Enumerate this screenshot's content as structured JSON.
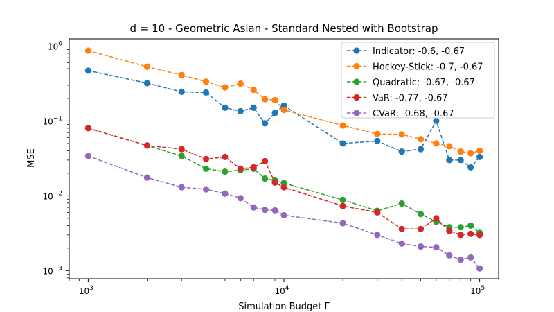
{
  "chart_data": {
    "type": "line",
    "title": "d = 10 - Geometric Asian - Standard Nested with Bootstrap",
    "xlabel": "Simulation Budget Γ",
    "ylabel": "MSE",
    "xscale": "log",
    "yscale": "log",
    "xlim": [
      800,
      125000
    ],
    "ylim": [
      0.00078,
      1.25
    ],
    "x_ticks": [
      {
        "value": 1000,
        "base": "10",
        "exp": "3"
      },
      {
        "value": 10000,
        "base": "10",
        "exp": "4"
      },
      {
        "value": 100000,
        "base": "10",
        "exp": "5"
      }
    ],
    "y_ticks": [
      {
        "value": 0.001,
        "base": "10",
        "exp": "−3"
      },
      {
        "value": 0.01,
        "base": "10",
        "exp": "−2"
      },
      {
        "value": 0.1,
        "base": "10",
        "exp": "−1"
      },
      {
        "value": 1,
        "base": "10",
        "exp": "0"
      }
    ],
    "legend_position": "top-right",
    "grid": false,
    "x": [
      1000,
      2000,
      3000,
      4000,
      5000,
      6000,
      7000,
      8000,
      9000,
      10000,
      20000,
      30000,
      40000,
      50000,
      60000,
      70000,
      80000,
      90000,
      100000
    ],
    "series": [
      {
        "name": "Indicator: -0.6, -0.67",
        "color": "#1f77b4",
        "values": [
          0.47,
          0.32,
          0.245,
          0.24,
          0.15,
          0.135,
          0.15,
          0.093,
          0.128,
          0.16,
          0.05,
          0.054,
          0.039,
          0.042,
          0.1,
          0.03,
          0.03,
          0.024,
          0.033
        ]
      },
      {
        "name": "Hockey-Stick: -0.7, -0.67",
        "color": "#ff7f0e",
        "values": [
          0.87,
          0.53,
          0.41,
          0.335,
          0.28,
          0.315,
          0.26,
          0.195,
          0.19,
          0.14,
          0.087,
          0.067,
          0.066,
          0.057,
          0.05,
          0.046,
          0.039,
          0.037,
          0.04
        ]
      },
      {
        "name": "Quadratic: -0.67, -0.67",
        "color": "#2ca02c",
        "values": [
          0.08,
          0.047,
          0.034,
          0.023,
          0.021,
          0.022,
          0.023,
          0.017,
          0.016,
          0.0148,
          0.0088,
          0.0063,
          0.0079,
          0.0057,
          0.0045,
          0.0038,
          0.0038,
          0.004,
          0.0032
        ]
      },
      {
        "name": "VaR: -0.77, -0.67",
        "color": "#d62728",
        "values": [
          0.08,
          0.047,
          0.042,
          0.031,
          0.033,
          0.023,
          0.024,
          0.029,
          0.015,
          0.013,
          0.0073,
          0.006,
          0.0036,
          0.0036,
          0.005,
          0.0034,
          0.003,
          0.0031,
          0.003
        ]
      },
      {
        "name": "CVaR: -0.68, -0.67",
        "color": "#9467bd",
        "values": [
          0.034,
          0.0175,
          0.013,
          0.0122,
          0.0107,
          0.0093,
          0.007,
          0.0065,
          0.0064,
          0.0055,
          0.0043,
          0.003,
          0.0023,
          0.0021,
          0.00205,
          0.0016,
          0.0014,
          0.0015,
          0.00107
        ]
      }
    ]
  }
}
